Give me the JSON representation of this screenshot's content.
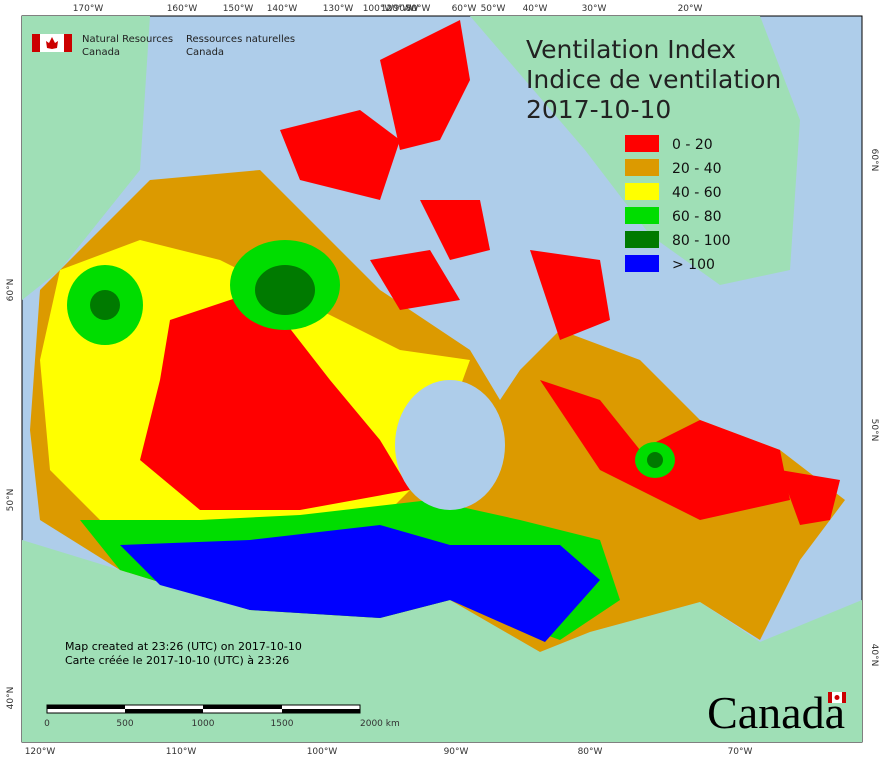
{
  "header": {
    "agency_en": [
      "Natural Resources",
      "Canada"
    ],
    "agency_fr": [
      "Ressources naturelles",
      "Canada"
    ],
    "title": [
      "Ventilation Index",
      "Indice de ventilation",
      "2017-10-10"
    ]
  },
  "legend": [
    {
      "label": "0 - 20",
      "color": "#ff0000"
    },
    {
      "label": "20 - 40",
      "color": "#dc9a00"
    },
    {
      "label": "40 - 60",
      "color": "#ffff00"
    },
    {
      "label": "60 - 80",
      "color": "#00dd00"
    },
    {
      "label": "80 - 100",
      "color": "#007a00"
    },
    {
      "label": "> 100",
      "color": "#0000ff"
    }
  ],
  "graticule": {
    "top": [
      "170°W",
      "160°W",
      "150°W",
      "140°W",
      "130°W",
      "120°W",
      "100°W",
      "90°W",
      "80°W",
      "60°W",
      "50°W",
      "40°W",
      "30°W",
      "20°W"
    ],
    "bottom": [
      "120°W",
      "110°W",
      "100°W",
      "90°W",
      "80°W",
      "70°W"
    ],
    "left": [
      "60°N",
      "50°N",
      "40°N"
    ],
    "right": [
      "60°N",
      "50°N",
      "40°N"
    ]
  },
  "notes": [
    "Map created at 23:26 (UTC) on 2017-10-10",
    "Carte créée le 2017-10-10 (UTC) à 23:26"
  ],
  "scale_bar": [
    "0",
    "500",
    "1000",
    "1500",
    "2000 km"
  ],
  "wordmark": "Canada"
}
